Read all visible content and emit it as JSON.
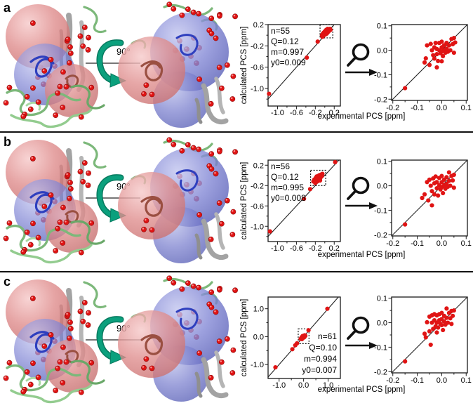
{
  "colors": {
    "point_red": "#e01414",
    "point_red_dark": "#8e0b0b",
    "teal_arrow": "#0ba07d",
    "teal_arrow_dark": "#077a5f",
    "axis_black": "#1a1a1a",
    "sphere_pink": "#e09090",
    "sphere_blue": "#8489d6",
    "ribbon_green": "#7cb87a",
    "ribbon_gray": "#a3a3a3",
    "ribbon_blue": "#2e3fbe",
    "ribbon_brown": "#9a4f41"
  },
  "icons": {
    "magnifier": "magnifier-icon",
    "arrow_right": "arrow-right-icon",
    "rotation": "rotation-90-icon"
  },
  "chart_data": {
    "type": "scatter",
    "panels": [
      {
        "label": "a",
        "rotation_label": "90°",
        "xlabel_shared": "experimental PCS [ppm]",
        "left_plot": {
          "ylabel": "calculated PCS [ppm]",
          "xlim": [
            -1.2,
            0.33
          ],
          "ylim": [
            -1.33,
            0.2
          ],
          "xticks": [
            -1.0,
            -0.6,
            -0.2,
            0.2
          ],
          "yticks": [
            0.2,
            -0.2,
            -0.6,
            -1.0
          ],
          "xminor": [
            -0.8,
            -0.4,
            0.0
          ],
          "yminor": [
            0.0,
            -0.4,
            -0.8,
            -1.2
          ],
          "stats": [
            "n=55",
            "Q=0.12",
            "m=0.997",
            "y0=0.009"
          ],
          "stats_corner": "top-left",
          "zoom_box": [
            -0.1,
            -0.05,
            0.17,
            0.2
          ],
          "identity_line": true,
          "points": [
            [
              -0.06,
              0.0
            ],
            [
              -0.05,
              -0.03
            ],
            [
              -0.04,
              0.03
            ],
            [
              -0.03,
              -0.01
            ],
            [
              -0.02,
              0.05
            ],
            [
              -0.01,
              0.02
            ],
            [
              0.0,
              0.07
            ],
            [
              0.0,
              0.01
            ],
            [
              0.01,
              0.04
            ],
            [
              0.02,
              0.08
            ],
            [
              0.02,
              0.02
            ],
            [
              0.03,
              0.05
            ],
            [
              0.03,
              0.1
            ],
            [
              0.04,
              0.03
            ],
            [
              0.05,
              0.07
            ],
            [
              0.05,
              0.11
            ],
            [
              0.06,
              0.05
            ],
            [
              0.06,
              0.12
            ],
            [
              0.07,
              0.09
            ],
            [
              0.08,
              0.07
            ],
            [
              0.09,
              0.11
            ],
            [
              0.1,
              0.09
            ],
            [
              0.11,
              0.12
            ],
            [
              0.12,
              0.1
            ],
            [
              -0.15,
              -0.12
            ],
            [
              -0.38,
              -0.42
            ],
            [
              -1.18,
              -1.1
            ]
          ]
        },
        "right_plot": {
          "ylabel": "",
          "xlim": [
            -0.205,
            0.105
          ],
          "ylim": [
            -0.205,
            0.105
          ],
          "xticks": [
            -0.2,
            -0.1,
            0.0,
            0.1
          ],
          "yticks": [
            0.1,
            0.0,
            -0.1,
            -0.2
          ],
          "xminor": [
            -0.15,
            -0.05,
            0.05
          ],
          "yminor": [
            0.05,
            -0.05,
            -0.15
          ],
          "stats": [],
          "stats_corner": "top-left",
          "zoom_box": null,
          "identity_line": true,
          "points": [
            [
              -0.15,
              -0.155
            ],
            [
              -0.07,
              -0.05
            ],
            [
              -0.065,
              -0.033
            ],
            [
              -0.06,
              0.02
            ],
            [
              -0.05,
              -0.06
            ],
            [
              -0.045,
              0.026
            ],
            [
              -0.04,
              0.0
            ],
            [
              -0.035,
              -0.02
            ],
            [
              -0.03,
              0.012
            ],
            [
              -0.03,
              -0.034
            ],
            [
              -0.025,
              0.03
            ],
            [
              -0.02,
              0.005
            ],
            [
              -0.02,
              -0.016
            ],
            [
              -0.02,
              -0.07
            ],
            [
              -0.015,
              -0.044
            ],
            [
              -0.01,
              0.03
            ],
            [
              -0.01,
              0.0
            ],
            [
              -0.005,
              -0.012
            ],
            [
              0.0,
              0.035
            ],
            [
              0.0,
              0.012
            ],
            [
              0.0,
              -0.005
            ],
            [
              0.0,
              -0.045
            ],
            [
              0.005,
              -0.024
            ],
            [
              0.01,
              0.02
            ],
            [
              0.01,
              0.0
            ],
            [
              0.015,
              -0.01
            ],
            [
              0.02,
              0.03
            ],
            [
              0.02,
              0.006
            ],
            [
              0.025,
              -0.006
            ],
            [
              0.03,
              0.02
            ],
            [
              0.035,
              0.0
            ],
            [
              0.04,
              0.046
            ],
            [
              0.045,
              0.025
            ],
            [
              0.05,
              0.05
            ],
            [
              0.05,
              -0.01
            ],
            [
              0.055,
              0.032
            ]
          ]
        }
      },
      {
        "label": "b",
        "rotation_label": "90°",
        "xlabel_shared": "experimental PCS [ppm]",
        "left_plot": {
          "ylabel": "calculated PCS [ppm]",
          "xlim": [
            -1.2,
            0.33
          ],
          "ylim": [
            -1.3,
            0.3
          ],
          "xticks": [
            -1.0,
            -0.6,
            -0.2,
            0.2
          ],
          "yticks": [
            0.2,
            -0.2,
            -0.6,
            -1.0
          ],
          "xminor": [
            -0.8,
            -0.4,
            0.0
          ],
          "yminor": [
            0.0,
            -0.4,
            -0.8,
            -1.2
          ],
          "stats": [
            "n=56",
            "Q=0.12",
            "m=0.995",
            "y0=0.008"
          ],
          "stats_corner": "top-left",
          "zoom_box": [
            -0.3,
            -0.2,
            0.02,
            0.1
          ],
          "identity_line": true,
          "points": [
            [
              -0.24,
              -0.12
            ],
            [
              -0.22,
              -0.08
            ],
            [
              -0.2,
              -0.11
            ],
            [
              -0.2,
              -0.15
            ],
            [
              -0.19,
              -0.05
            ],
            [
              -0.18,
              -0.09
            ],
            [
              -0.17,
              -0.02
            ],
            [
              -0.16,
              -0.06
            ],
            [
              -0.16,
              -0.12
            ],
            [
              -0.15,
              -0.1
            ],
            [
              -0.14,
              -0.03
            ],
            [
              -0.13,
              -0.07
            ],
            [
              -0.12,
              0.0
            ],
            [
              -0.12,
              -0.05
            ],
            [
              -0.11,
              -0.02
            ],
            [
              -0.1,
              -0.06
            ],
            [
              -0.1,
              -0.1
            ],
            [
              -0.09,
              0.01
            ],
            [
              -0.08,
              -0.03
            ],
            [
              -0.07,
              0.02
            ],
            [
              -0.06,
              -0.01
            ],
            [
              -0.05,
              0.03
            ],
            [
              0.22,
              0.26
            ],
            [
              -0.31,
              -0.27
            ],
            [
              -0.44,
              -0.46
            ],
            [
              -1.16,
              -1.1
            ]
          ]
        },
        "right_plot": {
          "ylabel": "",
          "xlim": [
            -0.205,
            0.105
          ],
          "ylim": [
            -0.205,
            0.105
          ],
          "xticks": [
            -0.2,
            -0.1,
            0.0,
            0.1
          ],
          "yticks": [
            0.1,
            0.0,
            -0.1,
            -0.2
          ],
          "xminor": [
            -0.15,
            -0.05,
            0.05
          ],
          "yminor": [
            0.05,
            -0.05,
            -0.15
          ],
          "stats": [],
          "stats_corner": "top-left",
          "zoom_box": null,
          "identity_line": true,
          "points": [
            [
              -0.15,
              -0.158
            ],
            [
              -0.08,
              -0.05
            ],
            [
              -0.07,
              -0.035
            ],
            [
              -0.06,
              0.015
            ],
            [
              -0.055,
              -0.06
            ],
            [
              -0.05,
              0.025
            ],
            [
              -0.045,
              0.0
            ],
            [
              -0.04,
              -0.08
            ],
            [
              -0.04,
              -0.022
            ],
            [
              -0.035,
              0.03
            ],
            [
              -0.03,
              0.01
            ],
            [
              -0.03,
              -0.035
            ],
            [
              -0.025,
              0.038
            ],
            [
              -0.02,
              0.015
            ],
            [
              -0.02,
              -0.01
            ],
            [
              -0.015,
              -0.04
            ],
            [
              -0.01,
              0.032
            ],
            [
              -0.01,
              0.002
            ],
            [
              -0.005,
              -0.015
            ],
            [
              0.0,
              0.04
            ],
            [
              0.0,
              0.015
            ],
            [
              0.0,
              -0.005
            ],
            [
              0.005,
              -0.03
            ],
            [
              0.01,
              0.025
            ],
            [
              0.01,
              0.002
            ],
            [
              0.015,
              -0.012
            ],
            [
              0.02,
              0.035
            ],
            [
              0.02,
              0.008
            ],
            [
              0.025,
              -0.004
            ],
            [
              0.03,
              0.055
            ],
            [
              0.03,
              0.02
            ],
            [
              0.035,
              0.0
            ],
            [
              0.04,
              0.04
            ],
            [
              0.045,
              0.022
            ],
            [
              0.05,
              0.045
            ],
            [
              0.05,
              -0.008
            ]
          ]
        }
      },
      {
        "label": "c",
        "rotation_label": "90°",
        "xlabel_shared": "experimental PCS [ppm]",
        "left_plot": {
          "ylabel": "calculated PCS [ppm]",
          "xlim": [
            -1.45,
            1.5
          ],
          "ylim": [
            -1.5,
            1.42
          ],
          "xticks": [
            -1.0,
            0.0,
            1.0
          ],
          "yticks": [
            1.0,
            0.0,
            -1.0
          ],
          "xminor": [
            -0.5,
            0.5
          ],
          "yminor": [
            0.5,
            -0.5
          ],
          "stats": [
            "n=61",
            "Q=0.10",
            "m=0.994",
            "y0=0.007"
          ],
          "stats_corner": "bottom-right",
          "zoom_box": [
            -0.22,
            -0.25,
            0.22,
            0.28
          ],
          "identity_line": true,
          "points": [
            [
              -0.12,
              -0.08
            ],
            [
              -0.09,
              -0.04
            ],
            [
              -0.07,
              -0.09
            ],
            [
              -0.06,
              -0.01
            ],
            [
              -0.05,
              -0.05
            ],
            [
              -0.04,
              0.02
            ],
            [
              -0.03,
              -0.02
            ],
            [
              -0.02,
              0.01
            ],
            [
              -0.01,
              -0.04
            ],
            [
              0.0,
              0.03
            ],
            [
              0.01,
              0.0
            ],
            [
              0.02,
              0.04
            ],
            [
              0.03,
              -0.02
            ],
            [
              0.04,
              0.02
            ],
            [
              0.05,
              0.05
            ],
            [
              0.07,
              0.03
            ],
            [
              0.2,
              0.23
            ],
            [
              -0.27,
              -0.24
            ],
            [
              -0.34,
              -0.31
            ],
            [
              -0.46,
              -0.45
            ],
            [
              -1.15,
              -1.1
            ],
            [
              0.97,
              1.0
            ]
          ]
        },
        "right_plot": {
          "ylabel": "",
          "xlim": [
            -0.205,
            0.105
          ],
          "ylim": [
            -0.205,
            0.105
          ],
          "xticks": [
            -0.2,
            -0.1,
            0.0,
            0.1
          ],
          "yticks": [
            0.1,
            0.0,
            -0.1,
            -0.2
          ],
          "xminor": [
            -0.15,
            -0.05,
            0.05
          ],
          "yminor": [
            0.05,
            -0.05,
            -0.15
          ],
          "stats": [],
          "stats_corner": "top-left",
          "zoom_box": null,
          "identity_line": true,
          "points": [
            [
              -0.15,
              -0.158
            ],
            [
              -0.07,
              -0.045
            ],
            [
              -0.065,
              -0.06
            ],
            [
              -0.06,
              0.002
            ],
            [
              -0.05,
              0.025
            ],
            [
              -0.05,
              -0.035
            ],
            [
              -0.045,
              -0.09
            ],
            [
              -0.04,
              0.03
            ],
            [
              -0.04,
              0.0
            ],
            [
              -0.035,
              -0.025
            ],
            [
              -0.03,
              0.035
            ],
            [
              -0.03,
              0.01
            ],
            [
              -0.025,
              -0.015
            ],
            [
              -0.02,
              0.03
            ],
            [
              -0.02,
              0.0
            ],
            [
              -0.02,
              -0.04
            ],
            [
              -0.015,
              -0.02
            ],
            [
              -0.01,
              0.035
            ],
            [
              -0.01,
              0.01
            ],
            [
              -0.005,
              -0.005
            ],
            [
              0.0,
              0.04
            ],
            [
              0.0,
              0.015
            ],
            [
              0.0,
              -0.01
            ],
            [
              0.005,
              -0.03
            ],
            [
              0.01,
              0.028
            ],
            [
              0.01,
              0.005
            ],
            [
              0.015,
              -0.008
            ],
            [
              0.02,
              0.058
            ],
            [
              0.02,
              0.02
            ],
            [
              0.025,
              0.0
            ],
            [
              0.03,
              0.04
            ],
            [
              0.035,
              0.018
            ],
            [
              0.04,
              0.048
            ],
            [
              0.04,
              -0.005
            ],
            [
              0.045,
              0.028
            ],
            [
              0.05,
              0.05
            ]
          ]
        }
      }
    ]
  }
}
